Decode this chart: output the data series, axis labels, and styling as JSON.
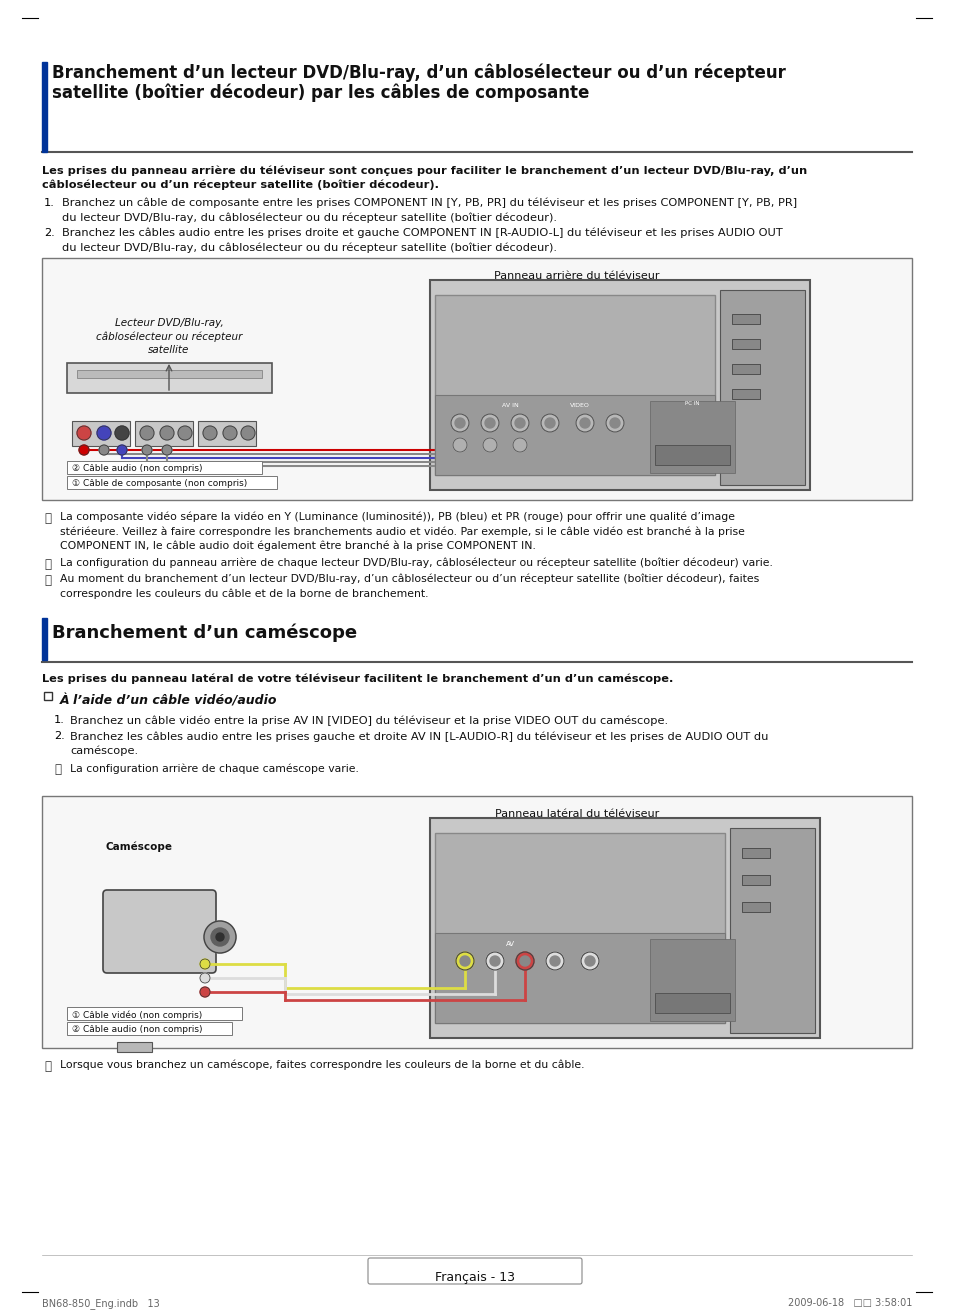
{
  "page_bg": "#ffffff",
  "section1_title_line1": "Branchement d’un lecteur DVD/Blu-ray, d’un câblosélecteur ou d’un récepteur",
  "section1_title_line2": "satellite (boîtier décodeur) par les câbles de composante",
  "section1_subtitle_bold": "Les prises du panneau arrière du téléviseur sont conçues pour faciliter le branchement d’un lecteur DVD/Blu-ray, d’un\ncâblosélecteur ou d’un récepteur satellite (boîtier décodeur).",
  "step1_num": "1.",
  "step1_text": "Branchez un câble de composante entre les prises COMPONENT IN [Y, PB, PR] du téléviseur et les prises COMPONENT [Y, PB, PR]\ndu lecteur DVD/Blu-ray, du câblosélecteur ou du récepteur satellite (boîtier décodeur).",
  "step2_num": "2.",
  "step2_text": "Branchez les câbles audio entre les prises droite et gauche COMPONENT IN [R-AUDIO-L] du téléviseur et les prises AUDIO OUT\ndu lecteur DVD/Blu-ray, du câblosélecteur ou du récepteur satellite (boîtier décodeur).",
  "diag1_panel_label": "Panneau arrière du téléviseur",
  "diag1_device_label": "Lecteur DVD/Blu-ray,\ncâblosélecteur ou récepteur\nsatellite",
  "diag1_cable1_label": "Câble de composante (non compris)",
  "diag1_cable2_label": "Câble audio (non compris)",
  "note1_text": "La composante vidéo sépare la vidéo en Y (Luminance (luminosité)), PB (bleu) et PR (rouge) pour offrir une qualité d’image\nstériéeure. Veillez à faire correspondre les branchements audio et vidéo. Par exemple, si le câble vidéo est branché à la prise\nCOMPONENT IN, le câble audio doit également être branché à la prise COMPONENT IN.",
  "note2_text": "La configuration du panneau arrière de chaque lecteur DVD/Blu-ray, câblosélecteur ou récepteur satellite (boîtier décodeur) varie.",
  "note3_text": "Au moment du branchement d’un lecteur DVD/Blu-ray, d’un câblosélecteur ou d’un récepteur satellite (boîtier décodeur), faites\ncorrespondre les couleurs du câble et de la borne de branchement.",
  "section2_title": "Branchement d’un caméscope",
  "section2_subtitle_bold": "Les prises du panneau latéral de votre téléviseur facilitent le branchement d’un d’un caméscope.",
  "subsec_title": "À l’aide d’un câble vidéo/audio",
  "cam_step1_num": "1.",
  "cam_step1_text": "Branchez un câble vidéo entre la prise AV IN [VIDEO] du téléviseur et la prise VIDEO OUT du caméscope.",
  "cam_step2_num": "2.",
  "cam_step2_text": "Branchez les câbles audio entre les prises gauche et droite AV IN [L-AUDIO-R] du téléviseur et les prises de AUDIO OUT du\ncaméscope.",
  "cam_note_text": "La configuration arrière de chaque caméscope varie.",
  "diag2_panel_label": "Panneau latéral du téléviseur",
  "diag2_device_label": "Caméscope",
  "diag2_cable1_label": "Câble vidéo (non compris)",
  "diag2_cable2_label": "Câble audio (non compris)",
  "final_note": "Lorsque vous branchez un caméscope, faites correspondre les couleurs de la borne et du câble.",
  "footer_center": "Français - 13",
  "footer_left": "BN68-850_Eng.indb   13",
  "footer_right": "2009-06-18   □□ 3:58:01",
  "accent_color": "#003399",
  "text_color": "#000000",
  "diag_bg": "#f0f0f0",
  "diag_border": "#888888"
}
